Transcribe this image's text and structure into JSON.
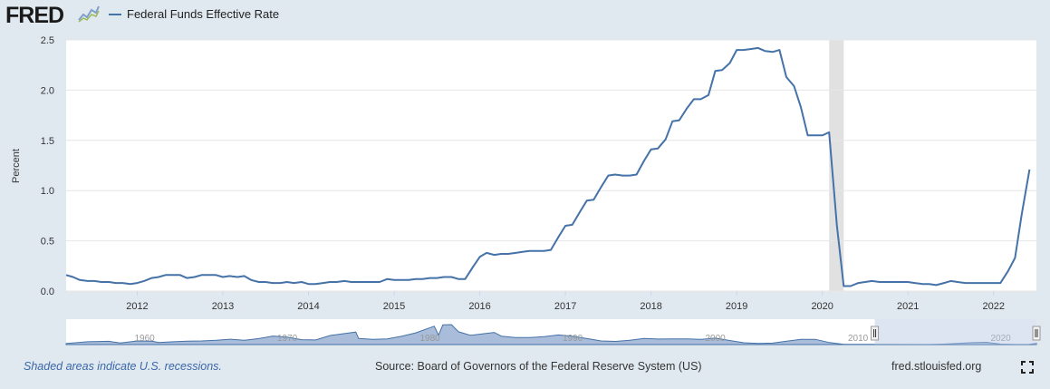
{
  "header": {
    "logo_text": "FRED",
    "legend_label": "Federal Funds Effective Rate"
  },
  "footer": {
    "recession_note": "Shaded areas indicate U.S. recessions.",
    "source": "Source: Board of Governors of the Federal Reserve System (US)",
    "site": "fred.stlouisfed.org"
  },
  "colors": {
    "series": "#4572a7",
    "recession": "#e1e1e1",
    "background": "#e1e9f0",
    "navigator_fill": "#a9bcd9",
    "navigator_mask": "#b4c6e2"
  },
  "chart_data": {
    "type": "line",
    "ylabel": "Percent",
    "ylim": [
      0,
      2.5
    ],
    "yticks": [
      "0.0",
      "0.5",
      "1.0",
      "1.5",
      "2.0",
      "2.5"
    ],
    "xlim": [
      2011.17,
      2022.5
    ],
    "xticks": [
      "2012",
      "2013",
      "2014",
      "2015",
      "2016",
      "2017",
      "2018",
      "2019",
      "2020",
      "2021",
      "2022"
    ],
    "grid": true,
    "recession": [
      2020.08,
      2020.25
    ],
    "series": [
      {
        "name": "Federal Funds Effective Rate",
        "points": [
          [
            2011.17,
            0.16
          ],
          [
            2011.25,
            0.14
          ],
          [
            2011.33,
            0.11
          ],
          [
            2011.42,
            0.1
          ],
          [
            2011.5,
            0.1
          ],
          [
            2011.58,
            0.09
          ],
          [
            2011.67,
            0.09
          ],
          [
            2011.75,
            0.08
          ],
          [
            2011.83,
            0.08
          ],
          [
            2011.92,
            0.07
          ],
          [
            2012.0,
            0.08
          ],
          [
            2012.08,
            0.1
          ],
          [
            2012.17,
            0.13
          ],
          [
            2012.25,
            0.14
          ],
          [
            2012.33,
            0.16
          ],
          [
            2012.42,
            0.16
          ],
          [
            2012.5,
            0.16
          ],
          [
            2012.58,
            0.13
          ],
          [
            2012.67,
            0.14
          ],
          [
            2012.75,
            0.16
          ],
          [
            2012.83,
            0.16
          ],
          [
            2012.92,
            0.16
          ],
          [
            2013.0,
            0.14
          ],
          [
            2013.08,
            0.15
          ],
          [
            2013.17,
            0.14
          ],
          [
            2013.25,
            0.15
          ],
          [
            2013.33,
            0.11
          ],
          [
            2013.42,
            0.09
          ],
          [
            2013.5,
            0.09
          ],
          [
            2013.58,
            0.08
          ],
          [
            2013.67,
            0.08
          ],
          [
            2013.75,
            0.09
          ],
          [
            2013.83,
            0.08
          ],
          [
            2013.92,
            0.09
          ],
          [
            2014.0,
            0.07
          ],
          [
            2014.08,
            0.07
          ],
          [
            2014.17,
            0.08
          ],
          [
            2014.25,
            0.09
          ],
          [
            2014.33,
            0.09
          ],
          [
            2014.42,
            0.1
          ],
          [
            2014.5,
            0.09
          ],
          [
            2014.58,
            0.09
          ],
          [
            2014.67,
            0.09
          ],
          [
            2014.75,
            0.09
          ],
          [
            2014.83,
            0.09
          ],
          [
            2014.92,
            0.12
          ],
          [
            2015.0,
            0.11
          ],
          [
            2015.08,
            0.11
          ],
          [
            2015.17,
            0.11
          ],
          [
            2015.25,
            0.12
          ],
          [
            2015.33,
            0.12
          ],
          [
            2015.42,
            0.13
          ],
          [
            2015.5,
            0.13
          ],
          [
            2015.58,
            0.14
          ],
          [
            2015.67,
            0.14
          ],
          [
            2015.75,
            0.12
          ],
          [
            2015.83,
            0.12
          ],
          [
            2015.92,
            0.24
          ],
          [
            2016.0,
            0.34
          ],
          [
            2016.08,
            0.38
          ],
          [
            2016.17,
            0.36
          ],
          [
            2016.25,
            0.37
          ],
          [
            2016.33,
            0.37
          ],
          [
            2016.42,
            0.38
          ],
          [
            2016.5,
            0.39
          ],
          [
            2016.58,
            0.4
          ],
          [
            2016.67,
            0.4
          ],
          [
            2016.75,
            0.4
          ],
          [
            2016.83,
            0.41
          ],
          [
            2016.92,
            0.54
          ],
          [
            2017.0,
            0.65
          ],
          [
            2017.08,
            0.66
          ],
          [
            2017.17,
            0.79
          ],
          [
            2017.25,
            0.9
          ],
          [
            2017.33,
            0.91
          ],
          [
            2017.42,
            1.04
          ],
          [
            2017.5,
            1.15
          ],
          [
            2017.58,
            1.16
          ],
          [
            2017.67,
            1.15
          ],
          [
            2017.75,
            1.15
          ],
          [
            2017.83,
            1.16
          ],
          [
            2017.92,
            1.3
          ],
          [
            2018.0,
            1.41
          ],
          [
            2018.08,
            1.42
          ],
          [
            2018.17,
            1.51
          ],
          [
            2018.25,
            1.69
          ],
          [
            2018.33,
            1.7
          ],
          [
            2018.42,
            1.82
          ],
          [
            2018.5,
            1.91
          ],
          [
            2018.58,
            1.91
          ],
          [
            2018.67,
            1.95
          ],
          [
            2018.75,
            2.19
          ],
          [
            2018.83,
            2.2
          ],
          [
            2018.92,
            2.27
          ],
          [
            2019.0,
            2.4
          ],
          [
            2019.08,
            2.4
          ],
          [
            2019.17,
            2.41
          ],
          [
            2019.25,
            2.42
          ],
          [
            2019.33,
            2.39
          ],
          [
            2019.42,
            2.38
          ],
          [
            2019.5,
            2.4
          ],
          [
            2019.58,
            2.13
          ],
          [
            2019.67,
            2.04
          ],
          [
            2019.75,
            1.83
          ],
          [
            2019.83,
            1.55
          ],
          [
            2019.92,
            1.55
          ],
          [
            2020.0,
            1.55
          ],
          [
            2020.08,
            1.58
          ],
          [
            2020.17,
            0.65
          ],
          [
            2020.25,
            0.05
          ],
          [
            2020.33,
            0.05
          ],
          [
            2020.42,
            0.08
          ],
          [
            2020.5,
            0.09
          ],
          [
            2020.58,
            0.1
          ],
          [
            2020.67,
            0.09
          ],
          [
            2020.75,
            0.09
          ],
          [
            2020.83,
            0.09
          ],
          [
            2020.92,
            0.09
          ],
          [
            2021.0,
            0.09
          ],
          [
            2021.08,
            0.08
          ],
          [
            2021.17,
            0.07
          ],
          [
            2021.25,
            0.07
          ],
          [
            2021.33,
            0.06
          ],
          [
            2021.42,
            0.08
          ],
          [
            2021.5,
            0.1
          ],
          [
            2021.58,
            0.09
          ],
          [
            2021.67,
            0.08
          ],
          [
            2021.75,
            0.08
          ],
          [
            2021.83,
            0.08
          ],
          [
            2021.92,
            0.08
          ],
          [
            2022.0,
            0.08
          ],
          [
            2022.08,
            0.08
          ],
          [
            2022.17,
            0.2
          ],
          [
            2022.25,
            0.33
          ],
          [
            2022.33,
            0.77
          ],
          [
            2022.42,
            1.21
          ]
        ]
      }
    ],
    "navigator": {
      "xlim": [
        1954.5,
        2022.5
      ],
      "xticks": [
        "1960",
        "1970",
        "1980",
        "1990",
        "2000",
        "2010",
        "2020"
      ],
      "selected_range": [
        2011.17,
        2022.5
      ],
      "points": [
        [
          1954.5,
          1.0
        ],
        [
          1956,
          2.7
        ],
        [
          1957.5,
          3.1
        ],
        [
          1958.3,
          1.5
        ],
        [
          1959.5,
          3.5
        ],
        [
          1960.5,
          3.3
        ],
        [
          1961,
          1.9
        ],
        [
          1962,
          2.7
        ],
        [
          1963,
          3.2
        ],
        [
          1964,
          3.5
        ],
        [
          1965,
          4.1
        ],
        [
          1966,
          5.1
        ],
        [
          1967,
          4.2
        ],
        [
          1968,
          5.7
        ],
        [
          1969,
          8.2
        ],
        [
          1970,
          7.2
        ],
        [
          1971,
          4.7
        ],
        [
          1972,
          4.4
        ],
        [
          1973,
          8.7
        ],
        [
          1974,
          10.5
        ],
        [
          1974.8,
          12.0
        ],
        [
          1975,
          5.8
        ],
        [
          1976,
          5.0
        ],
        [
          1977,
          5.5
        ],
        [
          1978,
          7.9
        ],
        [
          1979,
          11.2
        ],
        [
          1980.3,
          17.6
        ],
        [
          1980.6,
          9.0
        ],
        [
          1980.9,
          18.9
        ],
        [
          1981.5,
          19.1
        ],
        [
          1982,
          12.2
        ],
        [
          1982.8,
          9.0
        ],
        [
          1983,
          9.1
        ],
        [
          1984.5,
          11.6
        ],
        [
          1985,
          8.1
        ],
        [
          1986,
          6.8
        ],
        [
          1987,
          6.7
        ],
        [
          1988,
          7.6
        ],
        [
          1989,
          9.2
        ],
        [
          1990,
          8.1
        ],
        [
          1991,
          5.7
        ],
        [
          1992,
          3.5
        ],
        [
          1993,
          3.0
        ],
        [
          1994,
          4.2
        ],
        [
          1995,
          5.8
        ],
        [
          1996,
          5.3
        ],
        [
          1997,
          5.5
        ],
        [
          1998,
          5.4
        ],
        [
          1999,
          5.0
        ],
        [
          2000,
          6.2
        ],
        [
          2001,
          3.9
        ],
        [
          2002,
          1.7
        ],
        [
          2003,
          1.1
        ],
        [
          2004,
          1.4
        ],
        [
          2005,
          3.2
        ],
        [
          2006,
          5.0
        ],
        [
          2007,
          5.0
        ],
        [
          2008,
          1.9
        ],
        [
          2009,
          0.16
        ],
        [
          2010,
          0.18
        ],
        [
          2012,
          0.14
        ],
        [
          2015,
          0.13
        ],
        [
          2016,
          0.4
        ],
        [
          2017,
          1.0
        ],
        [
          2018,
          1.8
        ],
        [
          2019,
          2.2
        ],
        [
          2020,
          0.4
        ],
        [
          2021,
          0.08
        ],
        [
          2022,
          0.3
        ],
        [
          2022.5,
          1.2
        ]
      ]
    }
  }
}
